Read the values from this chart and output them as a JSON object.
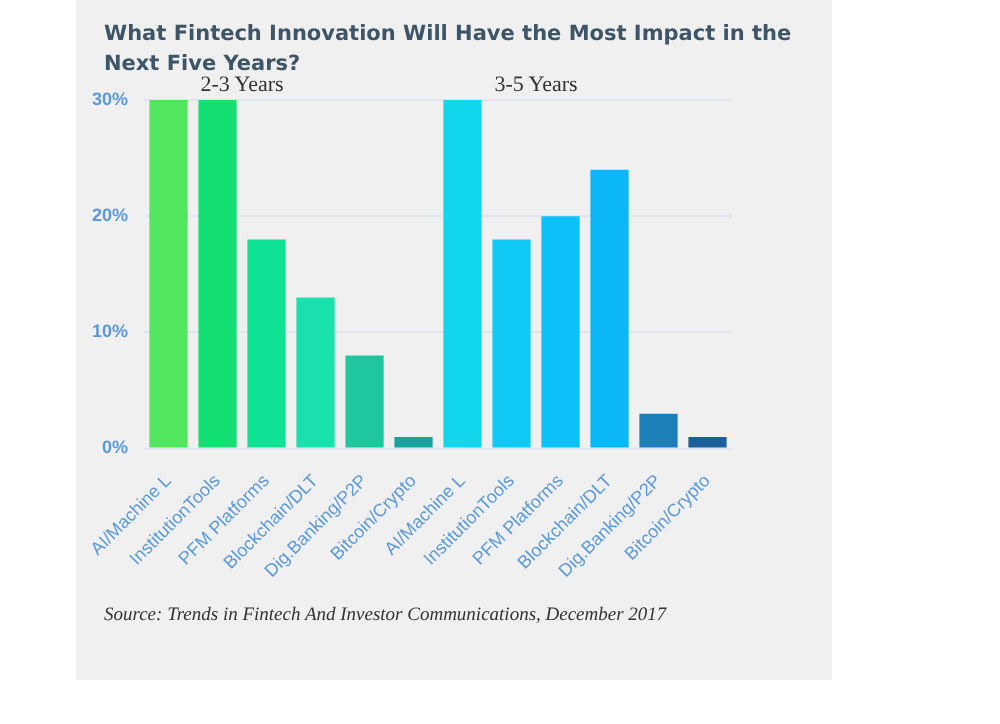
{
  "chart_data": {
    "type": "bar",
    "title": "What Fintech Innovation Will Have the Most Impact in the Next Five Years?",
    "categories": [
      "AI/Machine L",
      "InstitutionTools",
      "PFM Platforms",
      "Blockchain/DLT",
      "Dig.Banking/P2P",
      "Bitcoin/Crypto",
      "AI/Machine L",
      "InstitutionTools",
      "PFM Platforms",
      "Blockchain/DLT",
      "Dig.Banking/P2P",
      "Bitcoin/Crypto"
    ],
    "values": [
      30,
      30,
      18,
      13,
      8,
      1,
      30,
      18,
      20,
      24,
      3,
      1
    ],
    "colors": [
      "#52e65e",
      "#14df72",
      "#0fe294",
      "#1ae0ae",
      "#20c79e",
      "#17a2a0",
      "#12d6ec",
      "#10c9f5",
      "#0cc0f8",
      "#0bb7f7",
      "#1d7fb8",
      "#1d5f9a"
    ],
    "ylim": [
      0,
      30
    ],
    "yticks": [
      {
        "value": 0,
        "label": "0%"
      },
      {
        "value": 10,
        "label": "10%"
      },
      {
        "value": 20,
        "label": "20%"
      },
      {
        "value": 30,
        "label": "30%"
      }
    ],
    "grid": "y",
    "legend": false,
    "annotations": [
      "2-3 Years",
      "3-5 Years",
      "Source: Trends in Fintech And Investor Communications, December 2017"
    ]
  }
}
